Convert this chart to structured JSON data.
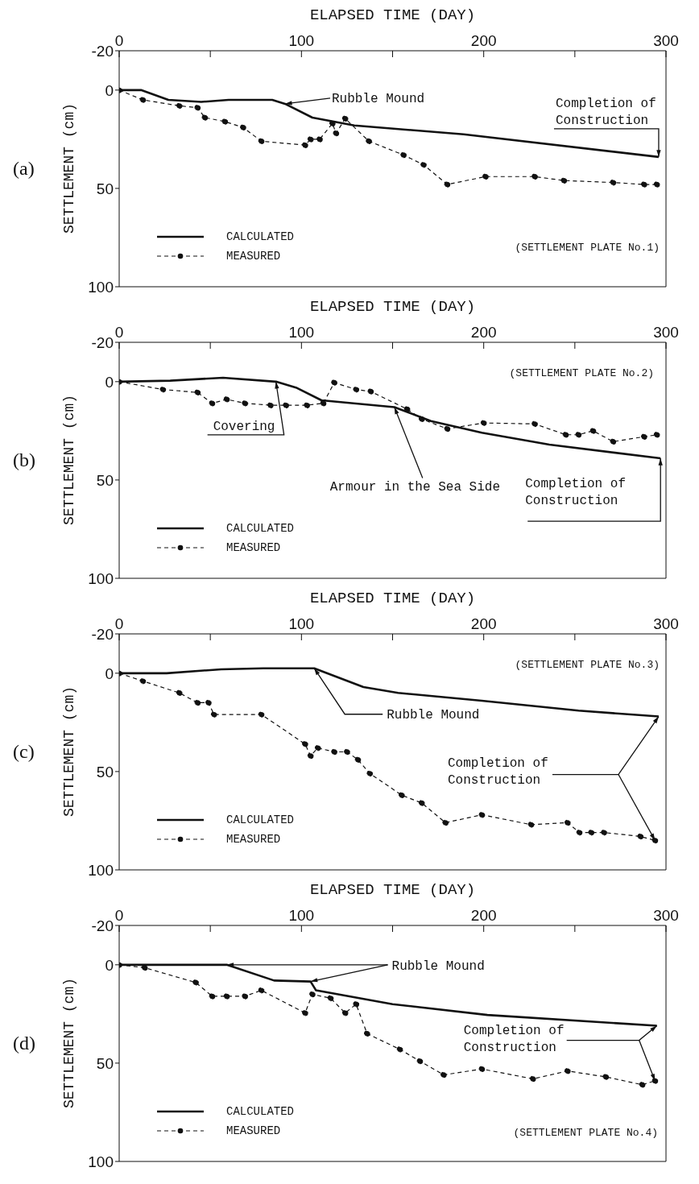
{
  "chart_data": [
    {
      "type": "line",
      "title": "(a)",
      "xlabel": "ELAPSED TIME (DAY)",
      "ylabel": "SETTLEMENT (cm)",
      "xlim": [
        0,
        300
      ],
      "xticks": [
        0,
        {
          "value": 50,
          "label": null
        },
        100,
        {
          "value": 150,
          "label": null
        },
        200,
        {
          "value": 250,
          "label": null
        },
        300
      ],
      "ylim": [
        100,
        -20
      ],
      "yticks": [
        -20,
        0,
        50,
        100
      ],
      "grid": false,
      "legend": "bottom left",
      "series": [
        {
          "name": "CALCULATED",
          "color": "#111111",
          "line_style": "solid",
          "marker": "none",
          "x": [
            0,
            12,
            27,
            45,
            60,
            84,
            91,
            106,
            129,
            189,
            296
          ],
          "values": [
            0,
            0,
            5,
            6,
            5,
            5,
            7,
            14,
            18,
            22.5,
            34
          ]
        },
        {
          "name": "MEASURED",
          "color": "#111111",
          "line_style": "dashed",
          "marker": "circle",
          "x": [
            0,
            13,
            33,
            43,
            47,
            58,
            68,
            78,
            102,
            105,
            110,
            117,
            119,
            124,
            137,
            156,
            167,
            180,
            201,
            228,
            244,
            271,
            288,
            295
          ],
          "values": [
            0,
            5,
            8,
            9,
            14,
            16,
            19,
            26,
            28,
            25,
            25,
            17,
            22,
            14.5,
            26,
            33,
            38,
            48,
            44,
            44,
            46,
            47,
            48,
            48
          ]
        }
      ],
      "annotations": [
        "(SETTLEMENT PLATE No.1)",
        {
          "text": "Rubble Mound",
          "x": 91,
          "y": 7
        },
        {
          "text": "Completion of Construction",
          "x": 296,
          "y": 34
        }
      ]
    },
    {
      "type": "line",
      "title": "(b)",
      "xlabel": "ELAPSED TIME (DAY)",
      "ylabel": "SETTLEMENT (cm)",
      "xlim": [
        0,
        300
      ],
      "xticks": [
        0,
        {
          "value": 50,
          "label": null
        },
        100,
        {
          "value": 150,
          "label": null
        },
        200,
        {
          "value": 250,
          "label": null
        },
        300
      ],
      "ylim": [
        100,
        -20
      ],
      "yticks": [
        -20,
        0,
        50,
        100
      ],
      "grid": false,
      "legend": "bottom left",
      "series": [
        {
          "name": "CALCULATED",
          "color": "#111111",
          "line_style": "solid",
          "marker": "none",
          "x": [
            0,
            28,
            57,
            86,
            97,
            111,
            151,
            171,
            199,
            236,
            297
          ],
          "values": [
            0,
            -0.5,
            -2,
            0,
            3,
            9.5,
            13,
            20,
            26,
            32,
            39
          ]
        },
        {
          "name": "MEASURED",
          "color": "#111111",
          "line_style": "dashed",
          "marker": "circle",
          "x": [
            0,
            24,
            43,
            51,
            59,
            69,
            83,
            91.5,
            103,
            112,
            118,
            130,
            138,
            158,
            166,
            180,
            200,
            228,
            245,
            252,
            260,
            271,
            288,
            295
          ],
          "values": [
            0,
            4,
            5.5,
            11,
            9,
            11,
            12,
            12,
            12,
            11,
            0.5,
            4,
            5,
            14,
            19,
            24,
            21,
            21.5,
            27,
            27,
            25,
            30.5,
            28,
            27
          ]
        }
      ],
      "annotations": [
        "(SETTLEMENT PLATE No.2)",
        {
          "text": "Covering",
          "x": 86,
          "y": 0
        },
        {
          "text": "Armour in the Sea Side",
          "x": 151,
          "y": 13
        },
        {
          "text": "Completion of Construction",
          "x": 297,
          "y": 39
        }
      ]
    },
    {
      "type": "line",
      "title": "(c)",
      "xlabel": "ELAPSED TIME (DAY)",
      "ylabel": "SETTLEMENT (cm)",
      "xlim": [
        0,
        300
      ],
      "xticks": [
        0,
        {
          "value": 50,
          "label": null
        },
        100,
        {
          "value": 150,
          "label": null
        },
        200,
        {
          "value": 250,
          "label": null
        },
        300
      ],
      "ylim": [
        100,
        -20
      ],
      "yticks": [
        -20,
        0,
        50,
        100
      ],
      "grid": false,
      "legend": "bottom left",
      "series": [
        {
          "name": "CALCULATED",
          "color": "#111111",
          "line_style": "solid",
          "marker": "none",
          "x": [
            0,
            26,
            56,
            79,
            107,
            134,
            153,
            199,
            252,
            296
          ],
          "values": [
            0,
            0,
            -2,
            -2.5,
            -2.5,
            7,
            10,
            14,
            19,
            22
          ]
        },
        {
          "name": "MEASURED",
          "color": "#111111",
          "line_style": "dashed",
          "marker": "circle",
          "x": [
            0,
            13,
            33,
            43,
            49,
            52,
            78,
            102,
            105,
            109,
            118,
            125,
            131,
            137.5,
            155,
            166,
            179,
            199,
            226,
            246,
            252.5,
            259,
            266,
            286,
            294
          ],
          "values": [
            0,
            4,
            10,
            15,
            15,
            21,
            21,
            36,
            42,
            38,
            40,
            40,
            44,
            51,
            62,
            66,
            76,
            72,
            77,
            76,
            81,
            81,
            81,
            83,
            85
          ]
        }
      ],
      "annotations": [
        "(SETTLEMENT PLATE No.3)",
        {
          "text": "Rubble Mound",
          "x": 107,
          "y": -2.5
        },
        {
          "text": "Completion of Construction",
          "x": 296,
          "y": 22
        }
      ]
    },
    {
      "type": "line",
      "title": "(d)",
      "xlabel": "ELAPSED TIME (DAY)",
      "ylabel": "SETTLEMENT (cm)",
      "xlim": [
        0,
        300
      ],
      "xticks": [
        0,
        {
          "value": 50,
          "label": null
        },
        100,
        {
          "value": 150,
          "label": null
        },
        200,
        {
          "value": 250,
          "label": null
        },
        300
      ],
      "ylim": [
        100,
        -20
      ],
      "yticks": [
        -20,
        0,
        50,
        100
      ],
      "grid": false,
      "legend": "bottom left",
      "series": [
        {
          "name": "CALCULATED",
          "color": "#111111",
          "line_style": "solid",
          "marker": "none",
          "x": [
            0,
            59,
            85,
            105,
            108,
            150,
            202,
            295
          ],
          "values": [
            0,
            0,
            8,
            8.5,
            13,
            20,
            25.5,
            31
          ]
        },
        {
          "name": "MEASURED",
          "color": "#111111",
          "line_style": "dashed",
          "marker": "circle",
          "x": [
            0,
            14,
            42,
            51,
            59,
            69,
            78,
            102,
            106,
            116,
            124,
            130,
            136,
            154,
            165,
            178,
            199,
            227,
            246,
            267,
            287,
            294
          ],
          "values": [
            0,
            1.5,
            9,
            16,
            16,
            16,
            13,
            24.5,
            15,
            17,
            24.5,
            20,
            35,
            43,
            49,
            56,
            53,
            58,
            54,
            57,
            61,
            59
          ]
        }
      ],
      "annotations": [
        "(SETTLEMENT PLATE No.4)",
        {
          "text": "Rubble Mound",
          "x": 59,
          "y": 0
        },
        {
          "text": "Completion of Construction",
          "x": 295,
          "y": 31
        }
      ]
    }
  ]
}
